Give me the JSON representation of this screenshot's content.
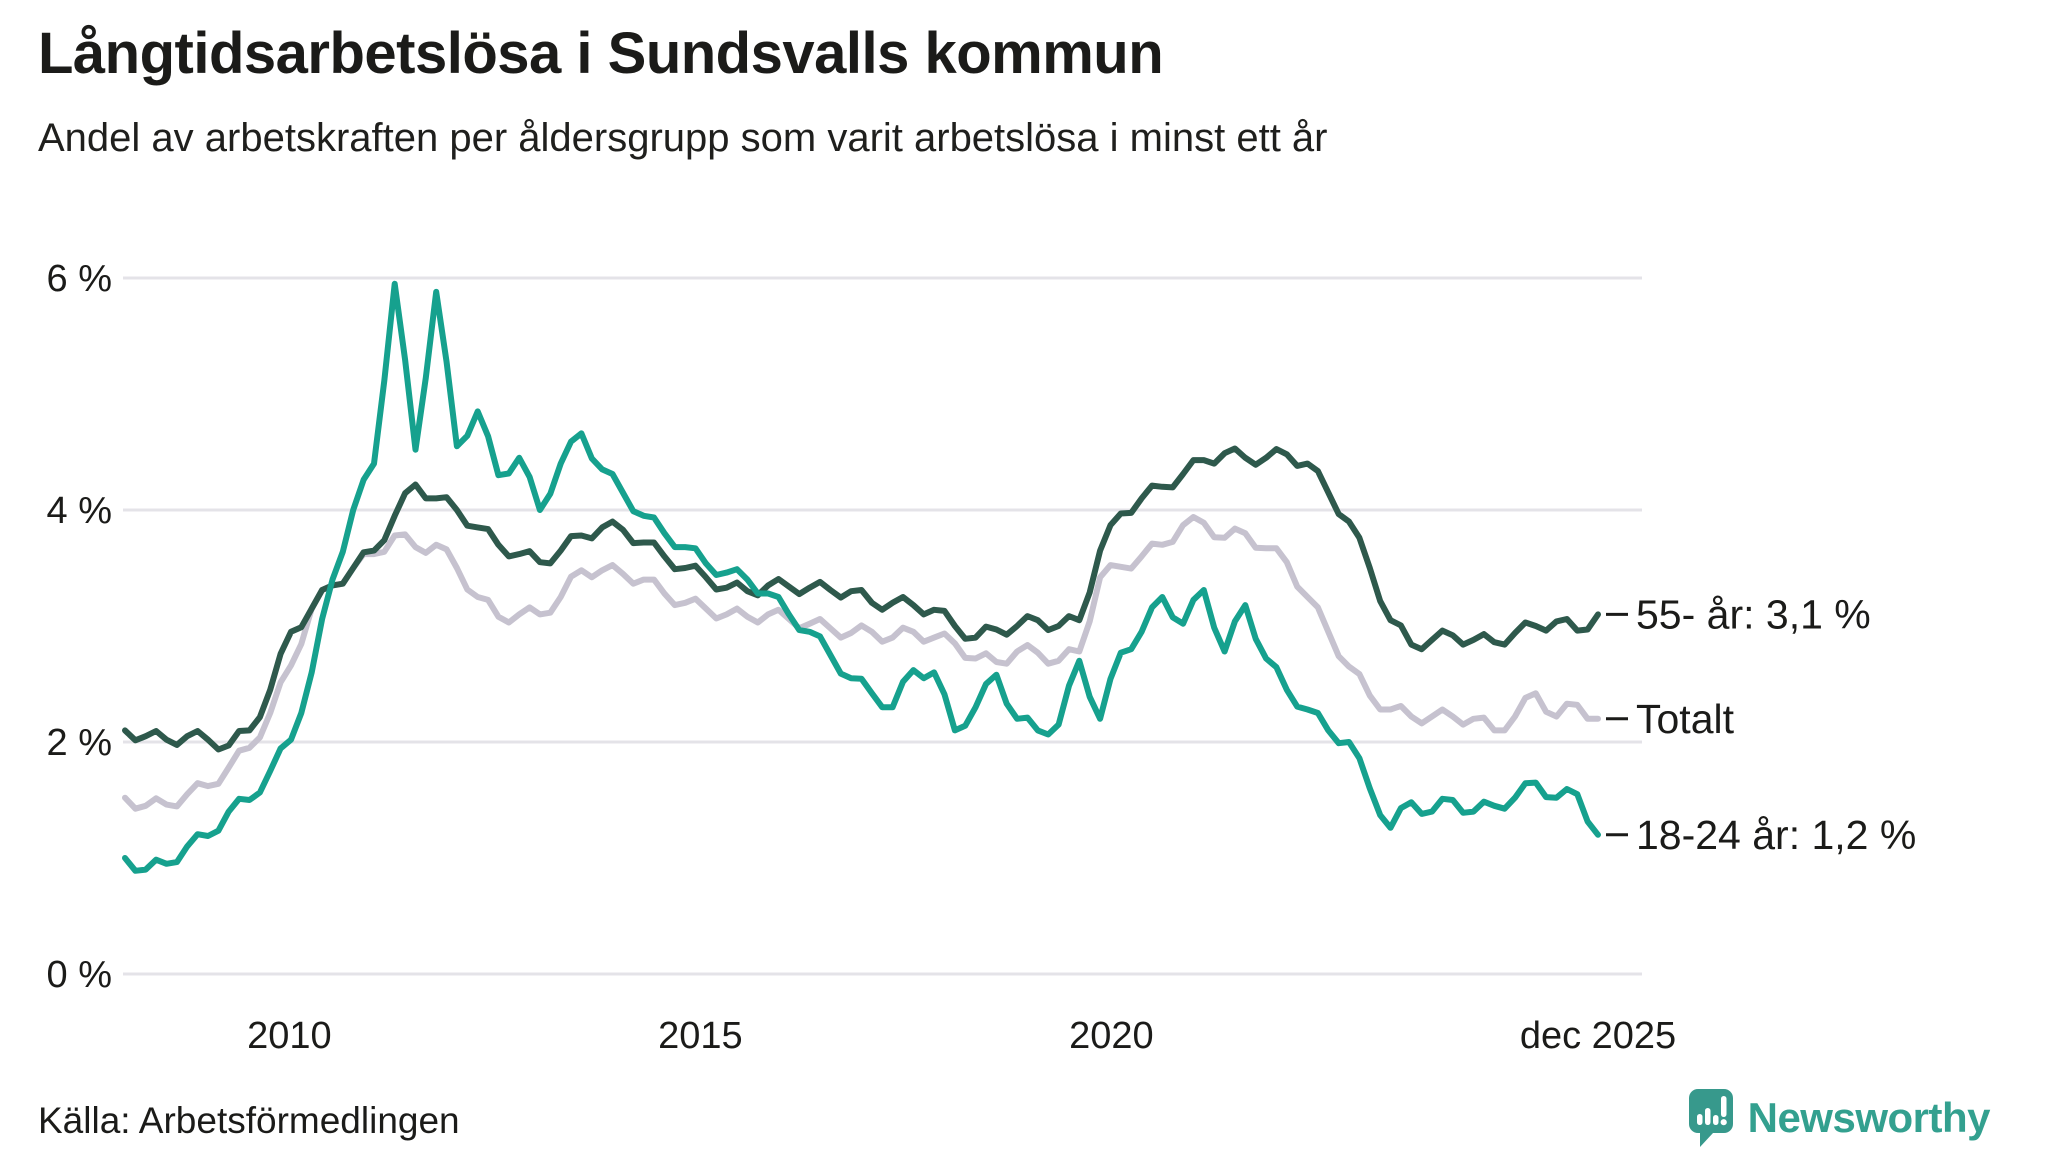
{
  "header": {
    "title": "Långtidsarbetslösa i Sundsvalls kommun",
    "subtitle": "Andel av arbetskraften per åldersgrupp som varit arbetslösa i minst ett år"
  },
  "source": {
    "label": "Källa: Arbetsförmedlingen"
  },
  "branding": {
    "name": "Newsworthy",
    "logo_icon": "bar-chart-speech-bubble-icon",
    "color": "#33a08f"
  },
  "colors": {
    "text": "#1b1b19",
    "gridline": "#e4e3e8",
    "series_55": "#2e594c",
    "series_total": "#c6c2cf",
    "series_1824": "#16a18e"
  },
  "chart_data": {
    "type": "line",
    "title": "Långtidsarbetslösa i Sundsvalls kommun",
    "subtitle": "Andel av arbetskraften per åldersgrupp som varit arbetslösa i minst ett år",
    "unit": "% av arbetskraften",
    "frequency": "quarterly",
    "x_start": 2008.0,
    "x_end": 2025.92,
    "ylim": [
      0,
      6.3
    ],
    "grid": "horizontal",
    "legend_position": "right-end-labels",
    "y_axis": {
      "ticks": [
        {
          "value": 0,
          "label": "0 %"
        },
        {
          "value": 2,
          "label": "2 %"
        },
        {
          "value": 4,
          "label": "4 %"
        },
        {
          "value": 6,
          "label": "6 %"
        }
      ]
    },
    "x_axis": {
      "ticks": [
        {
          "year": 2010.0,
          "label": "2010"
        },
        {
          "year": 2015.0,
          "label": "2015"
        },
        {
          "year": 2020.0,
          "label": "2020"
        },
        {
          "year": 2025.92,
          "label": "dec 2025"
        }
      ]
    },
    "series": [
      {
        "name": "Totalt",
        "end_label": "Totalt",
        "end_value": 2.2,
        "color": "#c6c2cf",
        "values": [
          1.52,
          1.45,
          1.46,
          1.55,
          1.62,
          1.78,
          1.95,
          2.25,
          2.66,
          3.15,
          3.35,
          3.5,
          3.62,
          3.78,
          3.68,
          3.7,
          3.5,
          3.25,
          3.08,
          3.1,
          3.1,
          3.25,
          3.48,
          3.48,
          3.45,
          3.4,
          3.28,
          3.2,
          3.15,
          3.1,
          3.08,
          3.1,
          3.06,
          3.02,
          2.98,
          2.94,
          2.95,
          2.9,
          2.95,
          2.9,
          2.85,
          2.72,
          2.69,
          2.78,
          2.77,
          2.7,
          2.78,
          3.42,
          3.51,
          3.6,
          3.7,
          3.87,
          3.89,
          3.76,
          3.8,
          3.67,
          3.55,
          3.25,
          2.95,
          2.65,
          2.4,
          2.28,
          2.22,
          2.22,
          2.22,
          2.2,
          2.1,
          2.22,
          2.42,
          2.22,
          2.32,
          2.2
        ]
      },
      {
        "name": "55- år",
        "end_label": "55- år: 3,1 %",
        "end_value": 3.1,
        "color": "#2e594c",
        "values": [
          2.1,
          2.05,
          2.02,
          2.05,
          2.02,
          1.97,
          2.1,
          2.45,
          2.95,
          3.15,
          3.35,
          3.5,
          3.65,
          3.95,
          4.22,
          4.1,
          4.0,
          3.85,
          3.7,
          3.62,
          3.55,
          3.65,
          3.78,
          3.85,
          3.83,
          3.72,
          3.6,
          3.5,
          3.42,
          3.33,
          3.3,
          3.35,
          3.34,
          3.33,
          3.31,
          3.3,
          3.2,
          3.2,
          3.18,
          3.14,
          3.0,
          2.9,
          2.97,
          3.0,
          3.05,
          3.0,
          3.05,
          3.65,
          3.97,
          4.1,
          4.2,
          4.31,
          4.43,
          4.49,
          4.45,
          4.45,
          4.48,
          4.4,
          4.15,
          3.9,
          3.5,
          3.05,
          2.84,
          2.88,
          2.92,
          2.88,
          2.86,
          2.94,
          3.0,
          3.04,
          2.96,
          3.1
        ]
      },
      {
        "name": "18-24 år",
        "end_label": "18-24 år: 1,2 %",
        "end_value": 1.2,
        "color": "#16a18e",
        "values": [
          1.0,
          0.9,
          0.95,
          1.1,
          1.19,
          1.4,
          1.5,
          1.75,
          2.02,
          2.6,
          3.4,
          4.0,
          4.4,
          5.95,
          4.52,
          5.88,
          4.55,
          4.85,
          4.3,
          4.45,
          4.0,
          4.4,
          4.66,
          4.35,
          4.15,
          3.95,
          3.8,
          3.68,
          3.54,
          3.46,
          3.4,
          3.28,
          3.1,
          2.95,
          2.75,
          2.55,
          2.42,
          2.3,
          2.62,
          2.6,
          2.1,
          2.3,
          2.58,
          2.2,
          2.1,
          2.15,
          2.7,
          2.2,
          2.77,
          2.95,
          3.25,
          3.02,
          3.31,
          2.78,
          3.18,
          2.72,
          2.45,
          2.28,
          2.1,
          2.0,
          1.6,
          1.26,
          1.48,
          1.4,
          1.5,
          1.4,
          1.45,
          1.52,
          1.65,
          1.52,
          1.55,
          1.2
        ]
      }
    ]
  }
}
